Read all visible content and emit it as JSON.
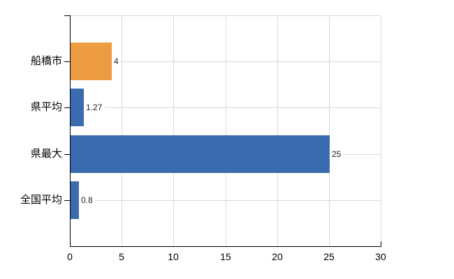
{
  "chart_data": {
    "type": "bar",
    "orientation": "horizontal",
    "title": "",
    "categories": [
      "船橋市",
      "県平均",
      "県最大",
      "全国平均"
    ],
    "values": [
      4,
      1.27,
      25,
      0.8
    ],
    "value_labels": [
      "4",
      "1.27",
      "25",
      "0.8"
    ],
    "bar_colors": [
      "#EE9C42",
      "#3A6BAE",
      "#3A6BAE",
      "#3A6BAE"
    ],
    "highlight_category": "船橋市",
    "xlim": [
      0,
      30
    ],
    "x_ticks": [
      0,
      5,
      10,
      15,
      20,
      25,
      30
    ],
    "x_tick_labels": [
      "0",
      "5",
      "10",
      "15",
      "20",
      "25",
      "30"
    ],
    "grid": true,
    "legend": false
  },
  "style": {
    "background": "#FFFFFF",
    "grid_color": "#D9D9D9",
    "axis_color": "#000000",
    "category_label_color": "#000000",
    "tick_label_color": "#000000",
    "value_label_color": "#222222"
  }
}
